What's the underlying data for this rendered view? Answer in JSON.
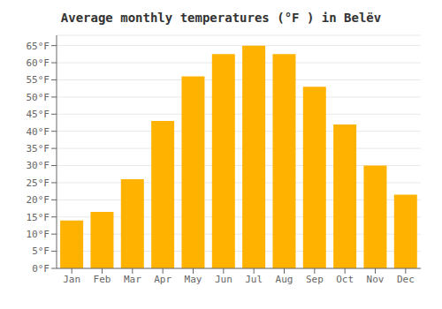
{
  "chart_data": {
    "type": "bar",
    "title": "Average monthly temperatures (°F ) in Belëv",
    "categories": [
      "Jan",
      "Feb",
      "Mar",
      "Apr",
      "May",
      "Jun",
      "Jul",
      "Aug",
      "Sep",
      "Oct",
      "Nov",
      "Dec"
    ],
    "values": [
      14,
      16.5,
      26,
      43,
      56,
      62.5,
      65,
      62.5,
      53,
      42,
      30,
      21.5
    ],
    "color": "#FFB300",
    "ylim": [
      0,
      68
    ],
    "yticks": [
      {
        "value": 0,
        "label": "0°F"
      },
      {
        "value": 5,
        "label": "5°F"
      },
      {
        "value": 10,
        "label": "10°F"
      },
      {
        "value": 15,
        "label": "15°F"
      },
      {
        "value": 20,
        "label": "20°F"
      },
      {
        "value": 25,
        "label": "25°F"
      },
      {
        "value": 30,
        "label": "30°F"
      },
      {
        "value": 35,
        "label": "35°F"
      },
      {
        "value": 40,
        "label": "40°F"
      },
      {
        "value": 45,
        "label": "45°F"
      },
      {
        "value": 50,
        "label": "50°F"
      },
      {
        "value": 55,
        "label": "55°F"
      },
      {
        "value": 60,
        "label": "60°F"
      },
      {
        "value": 65,
        "label": "65°F"
      }
    ],
    "grid": true
  }
}
